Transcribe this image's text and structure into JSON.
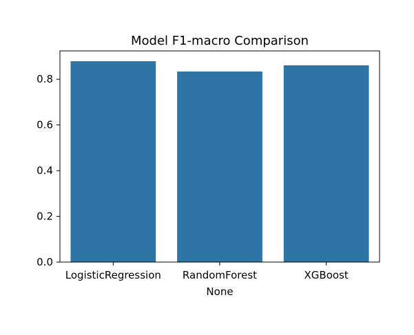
{
  "chart_data": {
    "type": "bar",
    "title": "Model F1-macro Comparison",
    "xlabel": "None",
    "ylabel": "",
    "categories": [
      "LogisticRegression",
      "RandomForest",
      "XGBoost"
    ],
    "values": [
      0.879,
      0.834,
      0.861
    ],
    "ylim": [
      0,
      0.924
    ],
    "yticks": [
      0.0,
      0.2,
      0.4,
      0.6,
      0.8
    ],
    "ytick_labels": [
      "0.0",
      "0.2",
      "0.4",
      "0.6",
      "0.8"
    ],
    "bar_color": "#2e75a6",
    "grid": false,
    "legend": "none"
  }
}
